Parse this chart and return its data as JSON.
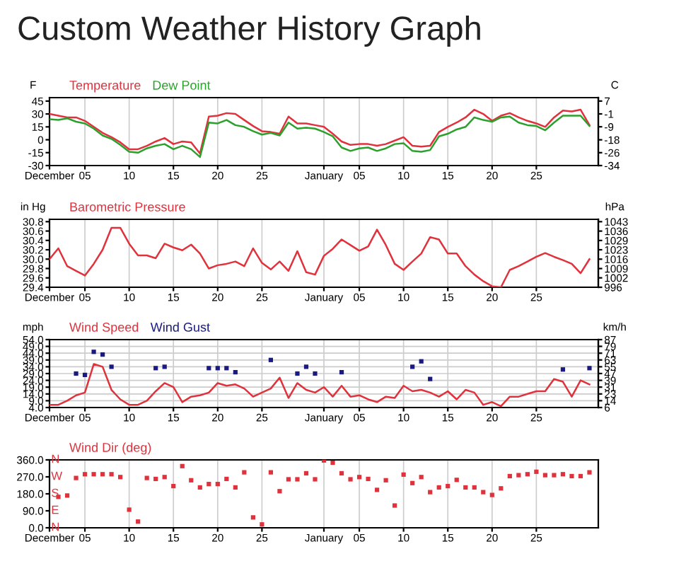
{
  "chart_data": [
    {
      "type": "line",
      "title": "Custom Weather History Graph",
      "ylabel": "F",
      "y2label": "C",
      "legend": "top left",
      "grid": "x",
      "categories": [
        "December",
        null,
        null,
        null,
        "05",
        null,
        null,
        null,
        null,
        "10",
        null,
        null,
        null,
        null,
        "15",
        null,
        null,
        null,
        null,
        "20",
        null,
        null,
        null,
        null,
        "25",
        null,
        null,
        null,
        null,
        null,
        null,
        "January",
        null,
        null,
        null,
        "05",
        null,
        null,
        null,
        null,
        "10",
        null,
        null,
        null,
        null,
        "15",
        null,
        null,
        null,
        null,
        "20",
        null,
        null,
        null,
        null,
        "25",
        null,
        null,
        null,
        null,
        null,
        null
      ],
      "ylim": [
        -30,
        49
      ],
      "yticks": [
        45,
        30,
        15,
        0,
        -15,
        -30
      ],
      "y2lim": [
        -34.4,
        9.4
      ],
      "y2ticks": [
        {
          "value": 7.2,
          "label": "7"
        },
        {
          "value": -1.1,
          "label": "-1"
        },
        {
          "value": -9.4,
          "label": "-9"
        },
        {
          "value": -17.8,
          "label": "-18"
        },
        {
          "value": -26.1,
          "label": "-26"
        },
        {
          "value": -34.4,
          "label": "-34"
        }
      ],
      "series": [
        {
          "name": "Temperature",
          "color": "#e0323c",
          "values": [
            30,
            28,
            26,
            26,
            22,
            15,
            8,
            3,
            -3,
            -11,
            -11,
            -7,
            -2,
            2,
            -5,
            -2,
            -3,
            -16,
            27,
            28,
            31,
            30,
            23,
            16,
            10,
            9,
            7,
            27,
            19,
            19,
            17,
            15,
            7,
            -2,
            -6,
            -5,
            -5,
            -7,
            -5,
            -1,
            3,
            -7,
            -8,
            -7,
            9,
            15,
            20,
            26,
            35,
            30,
            22,
            28,
            31,
            26,
            22,
            19,
            15,
            26,
            34,
            33,
            35,
            17
          ]
        },
        {
          "name": "Dew Point",
          "color": "#2ca02c",
          "values": [
            24,
            23,
            25,
            21,
            19,
            13,
            5,
            1,
            -6,
            -14,
            -15,
            -10,
            -7,
            -5,
            -11,
            -7,
            -11,
            -20,
            20,
            19,
            23,
            17,
            15,
            10,
            6,
            8,
            5,
            20,
            13,
            14,
            13,
            9,
            4,
            -9,
            -13,
            -10,
            -9,
            -13,
            -10,
            -5,
            -4,
            -13,
            -14,
            -12,
            4,
            7,
            12,
            15,
            26,
            23,
            21,
            26,
            27,
            20,
            17,
            16,
            11,
            20,
            28,
            28,
            28,
            16
          ]
        }
      ]
    },
    {
      "type": "line",
      "ylabel": "in Hg",
      "y2label": "hPa",
      "legend": "top left",
      "grid": "x",
      "categories": [
        "December",
        null,
        null,
        null,
        "05",
        null,
        null,
        null,
        null,
        "10",
        null,
        null,
        null,
        null,
        "15",
        null,
        null,
        null,
        null,
        "20",
        null,
        null,
        null,
        null,
        "25",
        null,
        null,
        null,
        null,
        null,
        null,
        "January",
        null,
        null,
        null,
        "05",
        null,
        null,
        null,
        null,
        "10",
        null,
        null,
        null,
        null,
        "15",
        null,
        null,
        null,
        null,
        "20",
        null,
        null,
        null,
        null,
        "25",
        null,
        null,
        null,
        null,
        null,
        null
      ],
      "ylim": [
        29.4,
        30.85
      ],
      "yticks": [
        30.8,
        30.6,
        30.4,
        30.2,
        {
          "value": 30,
          "label": "30.0"
        },
        29.8,
        29.6,
        29.4
      ],
      "y2lim": [
        995.6,
        1044.7
      ],
      "y2ticks": [
        {
          "value": 1043.0,
          "label": "1043"
        },
        {
          "value": 1036.2,
          "label": "1036"
        },
        {
          "value": 1029.4,
          "label": "1029"
        },
        {
          "value": 1022.7,
          "label": "1023"
        },
        {
          "value": 1015.9,
          "label": "1016"
        },
        {
          "value": 1009.1,
          "label": "1009"
        },
        {
          "value": 1002.4,
          "label": "1002"
        },
        {
          "value": 995.6,
          "label": "996"
        }
      ],
      "series": [
        {
          "name": "Barometric Pressure",
          "color": "#e0323c",
          "values": [
            30.0,
            30.23,
            29.85,
            29.75,
            29.65,
            29.9,
            30.2,
            30.67,
            30.67,
            30.33,
            30.08,
            30.08,
            30.02,
            30.33,
            30.25,
            30.19,
            30.31,
            30.12,
            29.8,
            29.87,
            29.9,
            29.95,
            29.85,
            30.23,
            29.92,
            29.78,
            29.95,
            29.75,
            30.17,
            29.72,
            29.67,
            30.07,
            30.22,
            30.42,
            30.3,
            30.18,
            30.27,
            30.63,
            30.3,
            29.9,
            29.77,
            29.95,
            30.12,
            30.47,
            30.42,
            30.12,
            30.12,
            29.85,
            29.67,
            29.53,
            29.42,
            29.4,
            29.77,
            29.85,
            29.95,
            30.05,
            30.13,
            30.05,
            29.98,
            29.9,
            29.7,
            30.0
          ]
        }
      ]
    },
    {
      "type": "line",
      "ylabel": "mph",
      "y2label": "km/h",
      "legend": "top left",
      "grid": true,
      "categories": [
        "December",
        null,
        null,
        null,
        "05",
        null,
        null,
        null,
        null,
        "10",
        null,
        null,
        null,
        null,
        "15",
        null,
        null,
        null,
        null,
        "20",
        null,
        null,
        null,
        null,
        "25",
        null,
        null,
        null,
        null,
        null,
        null,
        "January",
        null,
        null,
        null,
        "05",
        null,
        null,
        null,
        null,
        "10",
        null,
        null,
        null,
        null,
        "15",
        null,
        null,
        null,
        null,
        "20",
        null,
        null,
        null,
        null,
        "25",
        null,
        null,
        null,
        null,
        null,
        null
      ],
      "ylim": [
        4,
        54
      ],
      "yticks": [
        {
          "value": 54,
          "label": "54.0"
        },
        {
          "value": 49,
          "label": "49.0"
        },
        {
          "value": 44,
          "label": "44.0"
        },
        {
          "value": 39,
          "label": "39.0"
        },
        {
          "value": 34,
          "label": "34.0"
        },
        {
          "value": 29,
          "label": "29.0"
        },
        {
          "value": 24,
          "label": "24.0"
        },
        {
          "value": 19,
          "label": "19.0"
        },
        {
          "value": 14,
          "label": "14.0"
        },
        {
          "value": 9,
          "label": "9.0"
        },
        {
          "value": 4,
          "label": "4.0"
        }
      ],
      "y2lim": [
        6.4,
        86.9
      ],
      "y2ticks": [
        {
          "value": 86.9,
          "label": "87"
        },
        {
          "value": 78.9,
          "label": "79"
        },
        {
          "value": 70.8,
          "label": "71"
        },
        {
          "value": 62.8,
          "label": "63"
        },
        {
          "value": 54.7,
          "label": "55"
        },
        {
          "value": 46.7,
          "label": "47"
        },
        {
          "value": 38.6,
          "label": "39"
        },
        {
          "value": 30.6,
          "label": "31"
        },
        {
          "value": 22.5,
          "label": "23"
        },
        {
          "value": 14.5,
          "label": "14"
        },
        {
          "value": 6.4,
          "label": "6"
        }
      ],
      "series": [
        {
          "name": "Wind Speed",
          "color": "#e0323c",
          "values": [
            6,
            6,
            9,
            13,
            15,
            36,
            34,
            17,
            10,
            6,
            6,
            9,
            16,
            22,
            19,
            8,
            12,
            13,
            15,
            22,
            20,
            21,
            18,
            12,
            15,
            18,
            26,
            11,
            22,
            17,
            15,
            19,
            12,
            20,
            12,
            13,
            10,
            8,
            12,
            11,
            20,
            16,
            17,
            15,
            12,
            16,
            10,
            17,
            15,
            6,
            8,
            5,
            12,
            12,
            14,
            16,
            16,
            25,
            23,
            12,
            24,
            21
          ]
        },
        {
          "name": "Wind Gust",
          "color": "#1a1a80",
          "type": "scatter",
          "marker": "square",
          "values": [
            null,
            null,
            null,
            29,
            28,
            45,
            43,
            34,
            null,
            null,
            null,
            null,
            33,
            34,
            null,
            null,
            null,
            null,
            33,
            33,
            33,
            30,
            null,
            null,
            null,
            39,
            null,
            null,
            29,
            34,
            29,
            null,
            null,
            30,
            null,
            null,
            null,
            null,
            null,
            null,
            null,
            34,
            38,
            25,
            null,
            null,
            null,
            null,
            null,
            null,
            null,
            null,
            null,
            null,
            null,
            null,
            null,
            null,
            32,
            null,
            null,
            33
          ]
        }
      ]
    },
    {
      "type": "scatter",
      "legend": "top left",
      "grid": "x",
      "categories": [
        "December",
        null,
        null,
        null,
        "05",
        null,
        null,
        null,
        null,
        "10",
        null,
        null,
        null,
        null,
        "15",
        null,
        null,
        null,
        null,
        "20",
        null,
        null,
        null,
        null,
        "25",
        null,
        null,
        null,
        null,
        null,
        null,
        "January",
        null,
        null,
        null,
        "05",
        null,
        null,
        null,
        null,
        "10",
        null,
        null,
        null,
        null,
        "15",
        null,
        null,
        null,
        null,
        "20",
        null,
        null,
        null,
        null,
        "25",
        null,
        null,
        null,
        null,
        null,
        null
      ],
      "ylim": [
        0,
        360
      ],
      "yticks": [
        {
          "value": 360,
          "label": "360.0"
        },
        {
          "value": 270,
          "label": "270.0"
        },
        {
          "value": 180,
          "label": "180.0"
        },
        {
          "value": 90,
          "label": "90.0"
        },
        {
          "value": 0,
          "label": "0.0"
        }
      ],
      "annotations": [
        "N",
        "W",
        "S",
        "E",
        "N"
      ],
      "series": [
        {
          "name": "Wind Dir (deg)",
          "color": "#e0323c",
          "marker": "square",
          "values": [
            null,
            164,
            171,
            264,
            284,
            284,
            284,
            284,
            269,
            96,
            33,
            264,
            259,
            269,
            221,
            327,
            252,
            214,
            232,
            232,
            259,
            214,
            294,
            55,
            18,
            294,
            194,
            257,
            257,
            289,
            257,
            357,
            345,
            289,
            257,
            269,
            259,
            201,
            252,
            118,
            282,
            237,
            269,
            189,
            214,
            221,
            254,
            214,
            214,
            189,
            174,
            209,
            274,
            279,
            284,
            297,
            279,
            279,
            284,
            274,
            274,
            294
          ]
        }
      ]
    }
  ]
}
